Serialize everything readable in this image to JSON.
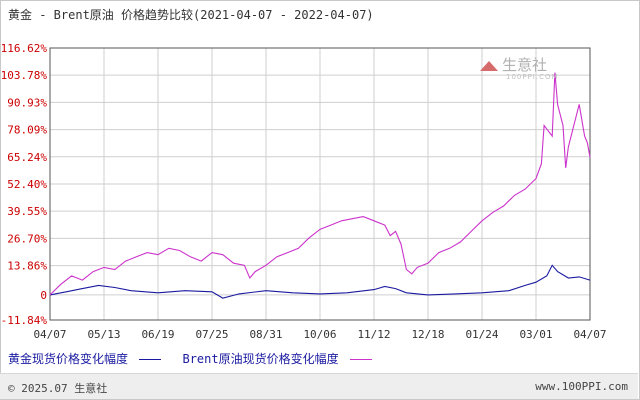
{
  "title": "黄金 - Brent原油 价格趋势比较(2021-04-07 - 2022-04-07)",
  "watermark": {
    "brand": "生意社",
    "domain": "100PPI.COM"
  },
  "footer": {
    "copyright": "© 2025.07 生意社",
    "site": "www.100PPI.com"
  },
  "chart_data": {
    "type": "line",
    "y_ticks": [
      "116.62%",
      "103.78%",
      "90.93%",
      "78.09%",
      "65.24%",
      "52.40%",
      "39.55%",
      "26.70%",
      "13.86%",
      "0",
      "-11.84%"
    ],
    "y_tick_values": [
      116.62,
      103.78,
      90.93,
      78.09,
      65.24,
      52.4,
      39.55,
      26.7,
      13.86,
      0,
      -11.84
    ],
    "ylim": [
      -11.84,
      116.62
    ],
    "x_ticks": [
      "04/07",
      "05/13",
      "06/19",
      "07/25",
      "08/31",
      "10/06",
      "11/12",
      "12/18",
      "01/24",
      "03/01",
      "04/07"
    ],
    "grid": true,
    "legend_position": "bottom",
    "colors": {
      "gold": "#1a1aa0",
      "brent": "#cc33cc",
      "ytick": "#cc0000",
      "grid": "#cfcfcf",
      "axis": "#555555"
    },
    "series": [
      {
        "name": "黄金现货价格变化幅度",
        "key": "gold",
        "values": [
          {
            "x": 0,
            "y": 0
          },
          {
            "x": 0.03,
            "y": 1.5
          },
          {
            "x": 0.06,
            "y": 3
          },
          {
            "x": 0.09,
            "y": 4.5
          },
          {
            "x": 0.12,
            "y": 3.5
          },
          {
            "x": 0.15,
            "y": 2
          },
          {
            "x": 0.2,
            "y": 1
          },
          {
            "x": 0.25,
            "y": 2
          },
          {
            "x": 0.3,
            "y": 1.5
          },
          {
            "x": 0.32,
            "y": -1.5
          },
          {
            "x": 0.35,
            "y": 0.5
          },
          {
            "x": 0.4,
            "y": 2
          },
          {
            "x": 0.45,
            "y": 1
          },
          {
            "x": 0.5,
            "y": 0.5
          },
          {
            "x": 0.55,
            "y": 1
          },
          {
            "x": 0.6,
            "y": 2.5
          },
          {
            "x": 0.62,
            "y": 4
          },
          {
            "x": 0.64,
            "y": 3
          },
          {
            "x": 0.66,
            "y": 1
          },
          {
            "x": 0.7,
            "y": 0
          },
          {
            "x": 0.75,
            "y": 0.5
          },
          {
            "x": 0.8,
            "y": 1
          },
          {
            "x": 0.85,
            "y": 2
          },
          {
            "x": 0.88,
            "y": 4.5
          },
          {
            "x": 0.9,
            "y": 6
          },
          {
            "x": 0.92,
            "y": 9
          },
          {
            "x": 0.93,
            "y": 14
          },
          {
            "x": 0.94,
            "y": 11
          },
          {
            "x": 0.96,
            "y": 8
          },
          {
            "x": 0.98,
            "y": 8.5
          },
          {
            "x": 1.0,
            "y": 7
          }
        ]
      },
      {
        "name": "Brent原油现货价格变化幅度",
        "key": "brent",
        "values": [
          {
            "x": 0,
            "y": 0
          },
          {
            "x": 0.02,
            "y": 5
          },
          {
            "x": 0.04,
            "y": 9
          },
          {
            "x": 0.06,
            "y": 7
          },
          {
            "x": 0.08,
            "y": 11
          },
          {
            "x": 0.1,
            "y": 13
          },
          {
            "x": 0.12,
            "y": 12
          },
          {
            "x": 0.14,
            "y": 16
          },
          {
            "x": 0.16,
            "y": 18
          },
          {
            "x": 0.18,
            "y": 20
          },
          {
            "x": 0.2,
            "y": 19
          },
          {
            "x": 0.22,
            "y": 22
          },
          {
            "x": 0.24,
            "y": 21
          },
          {
            "x": 0.26,
            "y": 18
          },
          {
            "x": 0.28,
            "y": 16
          },
          {
            "x": 0.3,
            "y": 20
          },
          {
            "x": 0.32,
            "y": 19
          },
          {
            "x": 0.34,
            "y": 15
          },
          {
            "x": 0.36,
            "y": 14
          },
          {
            "x": 0.37,
            "y": 8
          },
          {
            "x": 0.38,
            "y": 11
          },
          {
            "x": 0.4,
            "y": 14
          },
          {
            "x": 0.42,
            "y": 18
          },
          {
            "x": 0.44,
            "y": 20
          },
          {
            "x": 0.46,
            "y": 22
          },
          {
            "x": 0.48,
            "y": 27
          },
          {
            "x": 0.5,
            "y": 31
          },
          {
            "x": 0.52,
            "y": 33
          },
          {
            "x": 0.54,
            "y": 35
          },
          {
            "x": 0.56,
            "y": 36
          },
          {
            "x": 0.58,
            "y": 37
          },
          {
            "x": 0.6,
            "y": 35
          },
          {
            "x": 0.62,
            "y": 33
          },
          {
            "x": 0.63,
            "y": 28
          },
          {
            "x": 0.64,
            "y": 30
          },
          {
            "x": 0.65,
            "y": 24
          },
          {
            "x": 0.66,
            "y": 12
          },
          {
            "x": 0.67,
            "y": 10
          },
          {
            "x": 0.68,
            "y": 13
          },
          {
            "x": 0.7,
            "y": 15
          },
          {
            "x": 0.72,
            "y": 20
          },
          {
            "x": 0.74,
            "y": 22
          },
          {
            "x": 0.76,
            "y": 25
          },
          {
            "x": 0.78,
            "y": 30
          },
          {
            "x": 0.8,
            "y": 35
          },
          {
            "x": 0.82,
            "y": 39
          },
          {
            "x": 0.84,
            "y": 42
          },
          {
            "x": 0.86,
            "y": 47
          },
          {
            "x": 0.88,
            "y": 50
          },
          {
            "x": 0.9,
            "y": 55
          },
          {
            "x": 0.91,
            "y": 62
          },
          {
            "x": 0.915,
            "y": 80
          },
          {
            "x": 0.93,
            "y": 75
          },
          {
            "x": 0.935,
            "y": 105
          },
          {
            "x": 0.94,
            "y": 90
          },
          {
            "x": 0.95,
            "y": 80
          },
          {
            "x": 0.955,
            "y": 60
          },
          {
            "x": 0.96,
            "y": 70
          },
          {
            "x": 0.97,
            "y": 80
          },
          {
            "x": 0.98,
            "y": 90
          },
          {
            "x": 0.99,
            "y": 75
          },
          {
            "x": 0.995,
            "y": 72
          },
          {
            "x": 1.0,
            "y": 65
          }
        ]
      }
    ]
  }
}
